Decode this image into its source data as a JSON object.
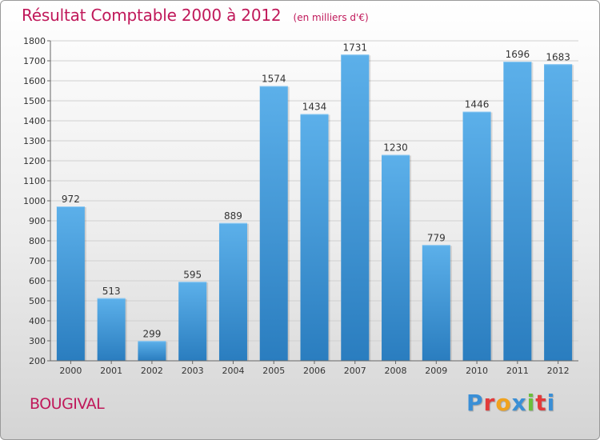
{
  "header": {
    "title": "Résultat Comptable 2000 à 2012",
    "subtitle": "(en milliers d'€)"
  },
  "footer": {
    "place": "BOUGIVAL",
    "brand": "Proxiti",
    "brand_colors": [
      "#3a8fd6",
      "#e23b3b",
      "#f0a21e",
      "#3a8fd6",
      "#6bbf3a",
      "#e23b3b",
      "#3a8fd6"
    ]
  },
  "colors": {
    "bar_top": "#5cb0ea",
    "bar_bottom": "#2a7dbf",
    "accent": "#c0185a",
    "grid": "#d0d0d0",
    "axis_text": "#333333"
  },
  "chart_data": {
    "type": "bar",
    "categories": [
      "2000",
      "2001",
      "2002",
      "2003",
      "2004",
      "2005",
      "2006",
      "2007",
      "2008",
      "2009",
      "2010",
      "2011",
      "2012"
    ],
    "values": [
      972,
      513,
      299,
      595,
      889,
      1574,
      1434,
      1731,
      1230,
      779,
      1446,
      1696,
      1683
    ],
    "data_labels": [
      "972",
      "513",
      "299",
      "595",
      "889",
      "1574",
      "1434",
      "1731",
      "1230",
      "779",
      "1446",
      "1696",
      "1683"
    ],
    "yticks": [
      "200",
      "300",
      "400",
      "500",
      "600",
      "700",
      "800",
      "900",
      "1000",
      "1100",
      "1200",
      "1300",
      "1400",
      "1500",
      "1600",
      "1700",
      "1800"
    ],
    "ylim": [
      200,
      1800
    ],
    "grid": true,
    "legend": "none"
  }
}
